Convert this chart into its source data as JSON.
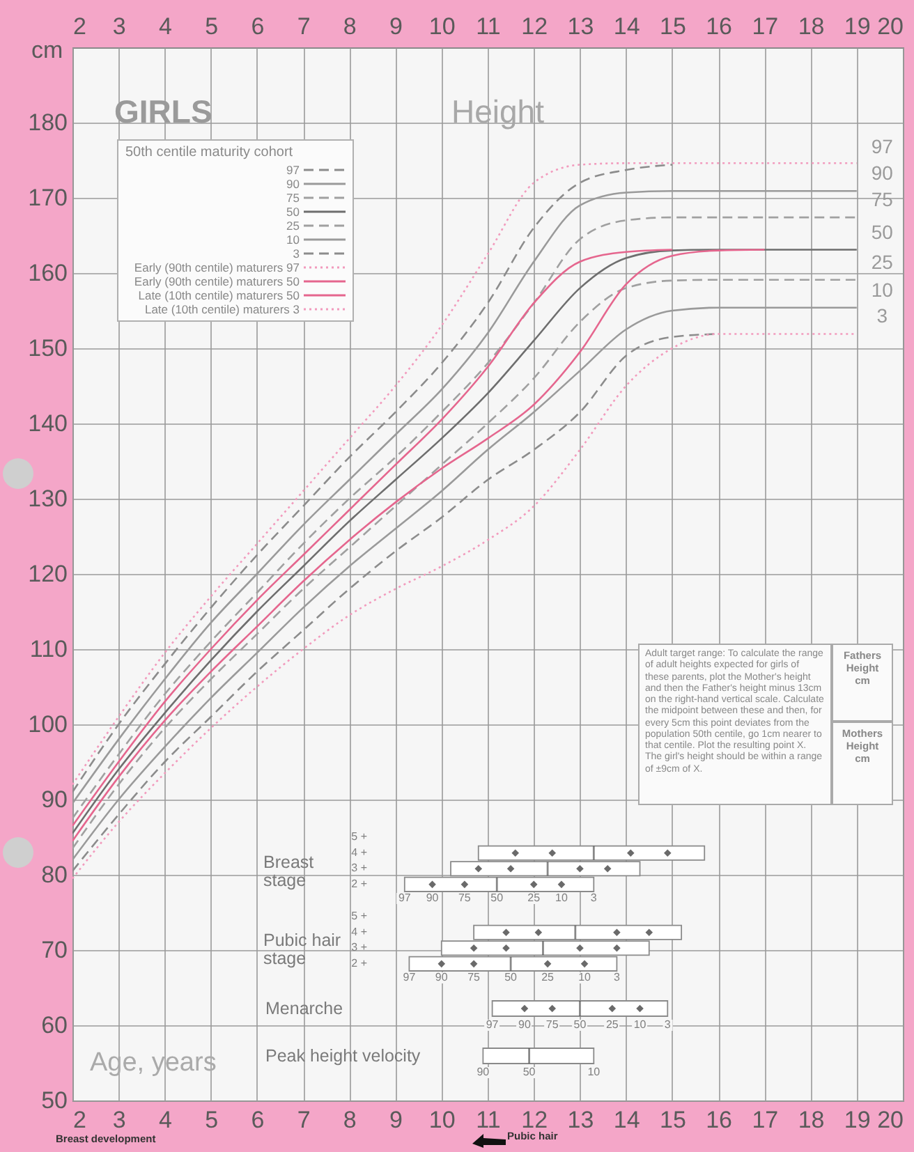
{
  "chart_data": [
    {
      "type": "line",
      "title": "GIRLS",
      "subtitle": "Height",
      "xlabel": "Age, years",
      "ylabel": "cm",
      "legend_title": "50th centile maturity cohort",
      "legend": "top left",
      "grid": true,
      "xlim": [
        2,
        20
      ],
      "xticks": [
        2,
        3,
        4,
        5,
        6,
        7,
        8,
        9,
        10,
        11,
        12,
        13,
        14,
        15,
        16,
        17,
        18,
        19,
        20
      ],
      "x2lim": [
        2,
        20
      ],
      "x2ticks": [
        2,
        3,
        4,
        5,
        6,
        7,
        8,
        9,
        10,
        11,
        12,
        13,
        14,
        15,
        16,
        17,
        18,
        19,
        20
      ],
      "ylim": [
        50,
        190
      ],
      "yticks": [
        50,
        60,
        70,
        80,
        90,
        100,
        110,
        120,
        130,
        140,
        150,
        160,
        170,
        180
      ],
      "series": [
        {
          "name": "97",
          "color": "#8c8c8c",
          "line_style": "dashed",
          "x": [
            2,
            3,
            4,
            5,
            6,
            7,
            8,
            9,
            10,
            11,
            12,
            13,
            14,
            15
          ],
          "values": [
            91,
            100,
            108,
            115.5,
            122.5,
            129,
            135.5,
            141.5,
            148,
            156,
            166,
            172,
            173.7,
            174.4
          ]
        },
        {
          "name": "90",
          "color": "#9a9a9a",
          "line_style": "solid",
          "x": [
            2,
            3,
            4,
            5,
            6,
            7,
            8,
            9,
            10,
            11,
            12,
            13,
            14,
            15,
            16,
            19
          ],
          "values": [
            89.5,
            98,
            106,
            113.5,
            120,
            126.5,
            132.5,
            138.5,
            144.5,
            152,
            161.5,
            169,
            170.7,
            170.9,
            170.9,
            170.9
          ]
        },
        {
          "name": "75",
          "color": "#a0a0a0",
          "line_style": "dashed",
          "x": [
            2,
            3,
            4,
            5,
            6,
            7,
            8,
            9,
            10,
            11,
            12,
            13,
            14,
            15,
            16,
            19
          ],
          "values": [
            87.5,
            96,
            104,
            111,
            117.5,
            124,
            130,
            135.5,
            141.5,
            148,
            156,
            164.5,
            167,
            167.4,
            167.4,
            167.4
          ]
        },
        {
          "name": "50",
          "color": "#6e6e6e",
          "line_style": "solid",
          "x": [
            2,
            3,
            4,
            5,
            6,
            7,
            8,
            9,
            10,
            11,
            12,
            13,
            14,
            15,
            16,
            19
          ],
          "values": [
            85.5,
            94,
            101.5,
            108.5,
            115,
            121,
            127,
            132.5,
            138,
            144,
            151,
            158,
            162,
            163,
            163.1,
            163.1
          ]
        },
        {
          "name": "25",
          "color": "#a0a0a0",
          "line_style": "dashed",
          "x": [
            2,
            3,
            4,
            5,
            6,
            7,
            8,
            9,
            10,
            11,
            12,
            13,
            14,
            15,
            16,
            19
          ],
          "values": [
            83.5,
            92,
            99.5,
            106,
            112,
            118,
            123.5,
            129,
            134.5,
            140,
            146,
            153.5,
            158,
            159,
            159.1,
            159.1
          ]
        },
        {
          "name": "10",
          "color": "#9a9a9a",
          "line_style": "solid",
          "x": [
            2,
            3,
            4,
            5,
            6,
            7,
            8,
            9,
            10,
            11,
            12,
            13,
            14,
            15,
            16,
            19
          ],
          "values": [
            82,
            90,
            97,
            103.5,
            109.5,
            115.5,
            121,
            126,
            131,
            136.5,
            141.5,
            147,
            152.5,
            155,
            155.4,
            155.4
          ]
        },
        {
          "name": "3",
          "color": "#8c8c8c",
          "line_style": "dashed",
          "x": [
            2,
            3,
            4,
            5,
            6,
            7,
            8,
            9,
            10,
            11,
            12,
            13,
            14,
            15,
            16
          ],
          "values": [
            80.5,
            88,
            95,
            101,
            107,
            112.5,
            118,
            123,
            127.5,
            132.5,
            136.5,
            141.5,
            149,
            151.5,
            151.9
          ]
        },
        {
          "name": "Early (90th centile) maturers 97",
          "color": "#f29bbd",
          "line_style": "dotted",
          "x": [
            2,
            3,
            4,
            5,
            6,
            7,
            8,
            9,
            10,
            11,
            12,
            13,
            14,
            19
          ],
          "values": [
            92,
            101,
            109.5,
            117,
            124,
            131,
            138,
            145,
            153,
            162.5,
            172,
            174.4,
            174.6,
            174.6
          ]
        },
        {
          "name": "Early (90th centile) maturers 50",
          "color": "#e5668e",
          "line_style": "solid",
          "x": [
            2,
            3,
            4,
            5,
            6,
            7,
            8,
            9,
            10,
            11,
            12,
            13,
            14,
            15
          ],
          "values": [
            86.5,
            95,
            103,
            110,
            116.5,
            122.5,
            128.5,
            134.5,
            140.5,
            147.5,
            156,
            161.5,
            162.8,
            163.1
          ]
        },
        {
          "name": "Late (10th centile) maturers 50",
          "color": "#e5668e",
          "line_style": "solid",
          "x": [
            2,
            3,
            4,
            5,
            6,
            7,
            8,
            9,
            10,
            11,
            12,
            13,
            14,
            15,
            16,
            17
          ],
          "values": [
            84.5,
            93,
            100.5,
            107,
            113,
            119,
            124.5,
            129.5,
            134,
            138,
            142.5,
            149.5,
            158.5,
            162.3,
            163,
            163.1
          ]
        },
        {
          "name": "Late (10th centile) maturers 3",
          "color": "#f29bbd",
          "line_style": "dotted",
          "x": [
            2,
            3,
            4,
            5,
            6,
            7,
            8,
            9,
            10,
            11,
            12,
            13,
            14,
            15,
            16,
            19
          ],
          "values": [
            79.5,
            87,
            93.5,
            99.5,
            105,
            110,
            114.5,
            118,
            121,
            124.5,
            129,
            136.5,
            145,
            150,
            151.9,
            151.9
          ]
        }
      ],
      "annotations": [
        "Adult target range: To calculate the range of adult heights expected for girls of these parents, plot the Mother's height and then the Father's height minus 13cm on the right-hand vertical scale. Calculate the midpoint between these and then, for every 5cm this point deviates from the population 50th centile, go 1cm nearer to that centile. Plot the resulting point X. The girl's height should be within a range of ±9cm of X.",
        "Fathers Height cm",
        "Mothers Height cm",
        "Breast development",
        "Pubic hair"
      ]
    },
    {
      "type": "box",
      "orientation": "horizontal",
      "marker": "diamond",
      "title": "Breast stage",
      "xlim": [
        2,
        20
      ],
      "tick_labels": "y",
      "categories": [
        "5 +",
        "4 +",
        "3 +",
        "2 +"
      ],
      "boxes": [
        null,
        {
          "low": 10.8,
          "q1": 10.8,
          "median": 13.3,
          "q3": 15.7,
          "high": 15.7
        },
        {
          "low": 10.2,
          "q1": 10.2,
          "median": 12.3,
          "q3": 14.3,
          "high": 14.3
        },
        {
          "low": 9.2,
          "q1": 9.2,
          "median": 11.2,
          "q3": 13.3,
          "high": 13.3
        }
      ],
      "series": [
        {
          "type": "scatter",
          "color": "#6a6a6a",
          "x": [
            "5 +",
            "4 +",
            "3 +",
            "2 +"
          ],
          "values": [
            null,
            11.6,
            10.8,
            9.8
          ]
        },
        {
          "type": "scatter",
          "color": "#6a6a6a",
          "x": [
            "5 +",
            "4 +",
            "3 +",
            "2 +"
          ],
          "values": [
            null,
            12.4,
            11.5,
            10.5
          ]
        },
        {
          "type": "scatter",
          "color": "#6a6a6a",
          "x": [
            "5 +",
            "4 +",
            "3 +",
            "2 +"
          ],
          "values": [
            null,
            14.1,
            13.0,
            12.0
          ]
        },
        {
          "type": "scatter",
          "color": "#6a6a6a",
          "x": [
            "5 +",
            "4 +",
            "3 +",
            "2 +"
          ],
          "values": [
            null,
            14.9,
            13.6,
            12.6
          ]
        }
      ],
      "annotations": [
        {
          "text": "97",
          "x": 9.2,
          "y": "2 +"
        },
        {
          "text": "90",
          "x": 9.8,
          "y": "2 +"
        },
        {
          "text": "75",
          "x": 10.5,
          "y": "2 +"
        },
        {
          "text": "50",
          "x": 11.2,
          "y": "2 +"
        },
        {
          "text": "25",
          "x": 12.0,
          "y": "2 +"
        },
        {
          "text": "10",
          "x": 12.6,
          "y": "2 +"
        },
        {
          "text": "3",
          "x": 13.3,
          "y": "2 +"
        }
      ]
    },
    {
      "type": "box",
      "orientation": "horizontal",
      "marker": "diamond",
      "title": "Pubic hair stage",
      "xlim": [
        2,
        20
      ],
      "tick_labels": "y",
      "categories": [
        "5 +",
        "4 +",
        "3 +",
        "2 +"
      ],
      "boxes": [
        null,
        {
          "low": 10.7,
          "q1": 10.7,
          "median": 12.9,
          "q3": 15.2,
          "high": 15.2
        },
        {
          "low": 10.0,
          "q1": 10.0,
          "median": 12.2,
          "q3": 14.5,
          "high": 14.5
        },
        {
          "low": 9.3,
          "q1": 9.3,
          "median": 11.5,
          "q3": 13.8,
          "high": 13.8
        }
      ],
      "series": [
        {
          "type": "scatter",
          "color": "#6a6a6a",
          "x": [
            "5 +",
            "4 +",
            "3 +",
            "2 +"
          ],
          "values": [
            null,
            11.4,
            10.7,
            10.0
          ]
        },
        {
          "type": "scatter",
          "color": "#6a6a6a",
          "x": [
            "5 +",
            "4 +",
            "3 +",
            "2 +"
          ],
          "values": [
            null,
            12.1,
            11.4,
            10.7
          ]
        },
        {
          "type": "scatter",
          "color": "#6a6a6a",
          "x": [
            "5 +",
            "4 +",
            "3 +",
            "2 +"
          ],
          "values": [
            null,
            13.8,
            13.0,
            12.3
          ]
        },
        {
          "type": "scatter",
          "color": "#6a6a6a",
          "x": [
            "5 +",
            "4 +",
            "3 +",
            "2 +"
          ],
          "values": [
            null,
            14.5,
            13.8,
            13.1
          ]
        }
      ],
      "annotations": [
        {
          "text": "97",
          "x": 9.3,
          "y": "2 +"
        },
        {
          "text": "90",
          "x": 10.0,
          "y": "2 +"
        },
        {
          "text": "75",
          "x": 10.7,
          "y": "2 +"
        },
        {
          "text": "50",
          "x": 11.5,
          "y": "2 +"
        },
        {
          "text": "25",
          "x": 12.3,
          "y": "2 +"
        },
        {
          "text": "10",
          "x": 13.1,
          "y": "2 +"
        },
        {
          "text": "3",
          "x": 13.8,
          "y": "2 +"
        }
      ]
    },
    {
      "type": "box",
      "orientation": "horizontal",
      "marker": "diamond",
      "xlim": [
        2,
        20
      ],
      "tick_labels": "y",
      "categories": [
        "Menarche",
        "Peak height velocity"
      ],
      "boxes": [
        {
          "low": 11.1,
          "q1": 11.1,
          "median": 13.0,
          "q3": 14.9,
          "high": 14.9
        },
        {
          "low": 10.9,
          "q1": 10.9,
          "median": 11.9,
          "q3": 13.3,
          "high": 13.3
        }
      ],
      "series": [
        {
          "type": "scatter",
          "color": "#6a6a6a",
          "x": [
            "Menarche",
            "Peak height velocity"
          ],
          "values": [
            11.8,
            null
          ]
        },
        {
          "type": "scatter",
          "color": "#6a6a6a",
          "x": [
            "Menarche",
            "Peak height velocity"
          ],
          "values": [
            12.4,
            null
          ]
        },
        {
          "type": "scatter",
          "color": "#6a6a6a",
          "x": [
            "Menarche",
            "Peak height velocity"
          ],
          "values": [
            13.7,
            null
          ]
        },
        {
          "type": "scatter",
          "color": "#6a6a6a",
          "x": [
            "Menarche",
            "Peak height velocity"
          ],
          "values": [
            14.3,
            null
          ]
        }
      ],
      "annotations": [
        {
          "text": "97",
          "x": 11.1,
          "y": "Menarche"
        },
        {
          "text": "90",
          "x": 11.8,
          "y": "Menarche"
        },
        {
          "text": "75",
          "x": 12.4,
          "y": "Menarche"
        },
        {
          "text": "50",
          "x": 13.0,
          "y": "Menarche"
        },
        {
          "text": "25",
          "x": 13.7,
          "y": "Menarche"
        },
        {
          "text": "10",
          "x": 14.3,
          "y": "Menarche"
        },
        {
          "text": "3",
          "x": 14.9,
          "y": "Menarche"
        },
        {
          "text": "90",
          "x": 10.9,
          "y": "Peak height velocity"
        },
        {
          "text": "50",
          "x": 11.9,
          "y": "Peak height velocity"
        },
        {
          "text": "10",
          "x": 13.3,
          "y": "Peak height velocity"
        }
      ]
    }
  ]
}
